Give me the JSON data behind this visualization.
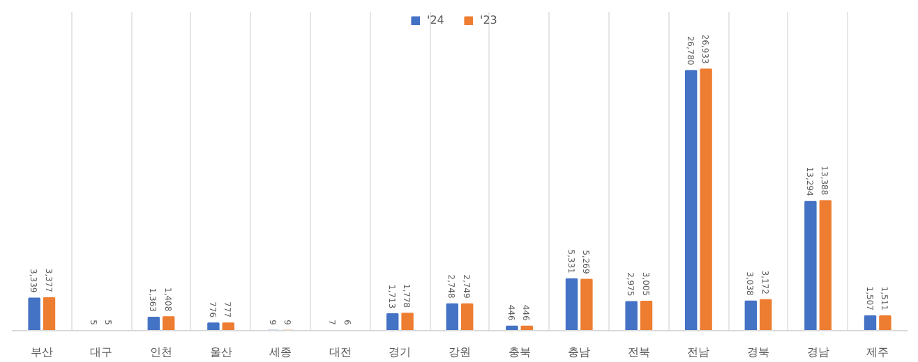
{
  "chart_data": {
    "type": "bar",
    "categories": [
      "부산",
      "대구",
      "인천",
      "울산",
      "세종",
      "대전",
      "경기",
      "강원",
      "충북",
      "충남",
      "전북",
      "전남",
      "경북",
      "경남",
      "제주"
    ],
    "series": [
      {
        "name": "'24",
        "color": "#4472c4",
        "values": [
          3339,
          5,
          1363,
          776,
          9,
          7,
          1713,
          2748,
          446,
          5331,
          2975,
          26780,
          3038,
          13294,
          1507
        ],
        "value_labels": [
          "3,339",
          "5",
          "1,363",
          "776",
          "9",
          "7",
          "1,713",
          "2,748",
          "446",
          "5,331",
          "2,975",
          "26,780",
          "3,038",
          "13,294",
          "1,507"
        ]
      },
      {
        "name": "'23",
        "color": "#ed7d31",
        "values": [
          3377,
          5,
          1408,
          777,
          9,
          6,
          1778,
          2749,
          446,
          5269,
          3005,
          26933,
          3172,
          13388,
          1511
        ],
        "value_labels": [
          "3,377",
          "5",
          "1,408",
          "777",
          "9",
          "6",
          "1,778",
          "2,749",
          "446",
          "5,269",
          "3,005",
          "26,933",
          "3,172",
          "13,388",
          "1,511"
        ]
      }
    ],
    "grid": "x",
    "legend": "top",
    "tick_labels": "x"
  }
}
